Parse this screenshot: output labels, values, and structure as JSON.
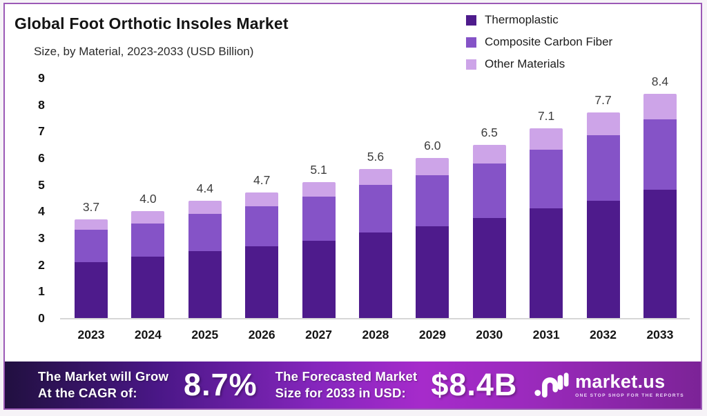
{
  "header": {
    "title": "Global Foot Orthotic Insoles Market",
    "subtitle": "Size, by Material, 2023-2033 (USD Billion)"
  },
  "chart_data": {
    "type": "bar",
    "stacked": true,
    "title": "Global Foot Orthotic Insoles Market",
    "subtitle": "Size, by Material, 2023-2033 (USD Billion)",
    "unit": "USD Billion",
    "categories": [
      "2023",
      "2024",
      "2025",
      "2026",
      "2027",
      "2028",
      "2029",
      "2030",
      "2031",
      "2032",
      "2033"
    ],
    "series": [
      {
        "name": "Thermoplastic",
        "color": "#4e1b8c",
        "values": [
          2.1,
          2.3,
          2.5,
          2.7,
          2.9,
          3.2,
          3.45,
          3.75,
          4.1,
          4.4,
          4.8
        ]
      },
      {
        "name": "Composite Carbon Fiber",
        "color": "#8553c7",
        "values": [
          1.2,
          1.25,
          1.4,
          1.5,
          1.65,
          1.8,
          1.9,
          2.05,
          2.2,
          2.45,
          2.65
        ]
      },
      {
        "name": "Other Materials",
        "color": "#cda4e8",
        "values": [
          0.4,
          0.45,
          0.5,
          0.5,
          0.55,
          0.6,
          0.65,
          0.7,
          0.8,
          0.85,
          0.95
        ]
      }
    ],
    "totals": [
      "3.7",
      "4.0",
      "4.4",
      "4.7",
      "5.1",
      "5.6",
      "6.0",
      "6.5",
      "7.1",
      "7.7",
      "8.4"
    ],
    "ylim": [
      0,
      9
    ],
    "yticks": [
      "0",
      "1",
      "2",
      "3",
      "4",
      "5",
      "6",
      "7",
      "8",
      "9"
    ],
    "grid": false,
    "legend_position": "top-right"
  },
  "banner": {
    "cagr_line1": "The Market will Grow",
    "cagr_line2": "At the CAGR of:",
    "cagr_value": "8.7%",
    "forecast_line1": "The Forecasted Market",
    "forecast_line2": "Size for 2033 in USD:",
    "forecast_value": "$8.4B",
    "logo_text": "market.us",
    "logo_tagline": "ONE STOP SHOP FOR THE REPORTS"
  }
}
